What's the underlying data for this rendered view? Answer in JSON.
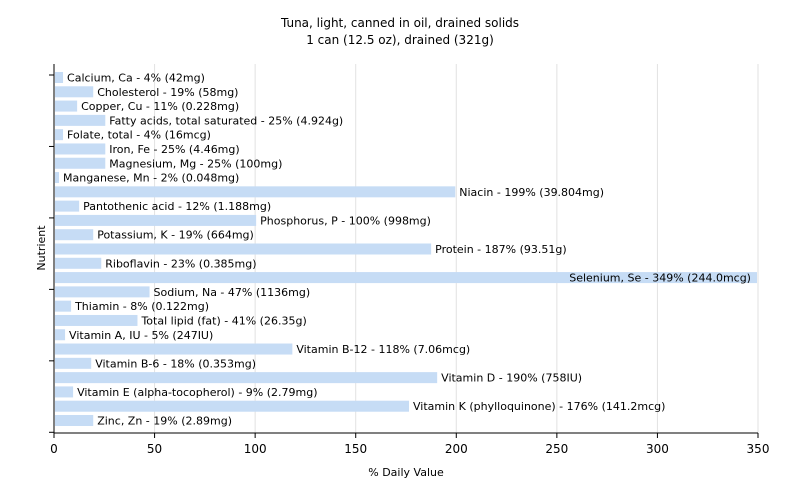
{
  "chart_data": {
    "type": "bar",
    "orientation": "horizontal",
    "title": "Tuna, light, canned in oil, drained solids",
    "subtitle": "1 can (12.5 oz), drained (321g)",
    "xlabel": "% Daily Value",
    "ylabel": "Nutrient",
    "xlim": [
      0,
      350
    ],
    "xticks": [
      0,
      50,
      100,
      150,
      200,
      250,
      300,
      350
    ],
    "grid": true,
    "bar_color": "#c6dcf5",
    "categories": [
      "Calcium, Ca",
      "Cholesterol",
      "Copper, Cu",
      "Fatty acids, total saturated",
      "Folate, total",
      "Iron, Fe",
      "Magnesium, Mg",
      "Manganese, Mn",
      "Niacin",
      "Pantothenic acid",
      "Phosphorus, P",
      "Potassium, K",
      "Protein",
      "Riboflavin",
      "Selenium, Se",
      "Sodium, Na",
      "Thiamin",
      "Total lipid (fat)",
      "Vitamin A, IU",
      "Vitamin B-12",
      "Vitamin B-6",
      "Vitamin D",
      "Vitamin E (alpha-tocopherol)",
      "Vitamin K (phylloquinone)",
      "Zinc, Zn"
    ],
    "values": [
      4,
      19,
      11,
      25,
      4,
      25,
      25,
      2,
      199,
      12,
      100,
      19,
      187,
      23,
      349,
      47,
      8,
      41,
      5,
      118,
      18,
      190,
      9,
      176,
      19
    ],
    "labels": [
      "Calcium, Ca - 4% (42mg)",
      "Cholesterol - 19% (58mg)",
      "Copper, Cu - 11% (0.228mg)",
      "Fatty acids, total saturated - 25% (4.924g)",
      "Folate, total - 4% (16mcg)",
      "Iron, Fe - 25% (4.46mg)",
      "Magnesium, Mg - 25% (100mg)",
      "Manganese, Mn - 2% (0.048mg)",
      "Niacin - 199% (39.804mg)",
      "Pantothenic acid - 12% (1.188mg)",
      "Phosphorus, P - 100% (998mg)",
      "Potassium, K - 19% (664mg)",
      "Protein - 187% (93.51g)",
      "Riboflavin - 23% (0.385mg)",
      "Selenium, Se - 349% (244.0mcg)",
      "Sodium, Na - 47% (1136mg)",
      "Thiamin - 8% (0.122mg)",
      "Total lipid (fat) - 41% (26.35g)",
      "Vitamin A, IU - 5% (247IU)",
      "Vitamin B-12 - 118% (7.06mcg)",
      "Vitamin B-6 - 18% (0.353mg)",
      "Vitamin D - 190% (758IU)",
      "Vitamin E (alpha-tocopherol) - 9% (2.79mg)",
      "Vitamin K (phylloquinone) - 176% (141.2mcg)",
      "Zinc, Zn - 19% (2.89mg)"
    ]
  }
}
